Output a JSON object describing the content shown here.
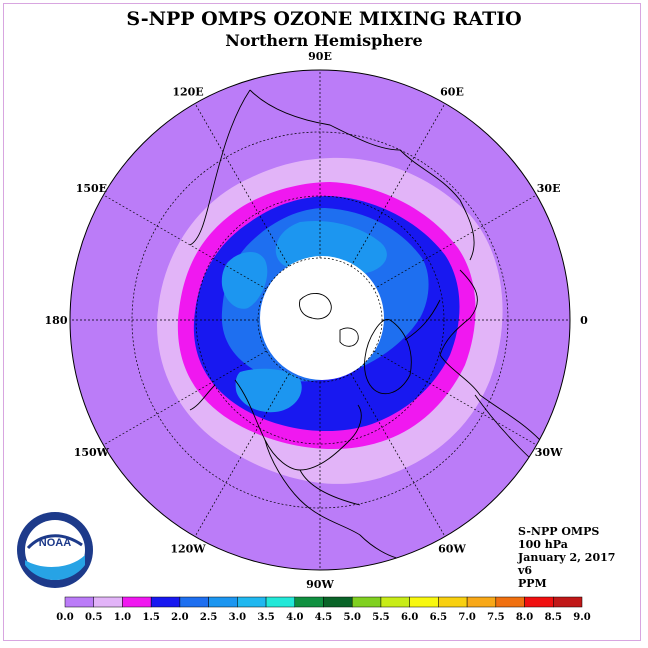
{
  "title": "S-NPP OMPS OZONE MIXING RATIO",
  "subtitle": "Northern Hemisphere",
  "meta": {
    "instrument": "S-NPP OMPS",
    "level": "100 hPa",
    "date": "January 2, 2017",
    "version": "v6",
    "units": "PPM"
  },
  "longitude_labels": [
    "90E",
    "60E",
    "30E",
    "0",
    "30W",
    "60W",
    "90W",
    "120W",
    "150W",
    "180",
    "150E",
    "120E"
  ],
  "colorbar": {
    "ticks": [
      "0.0",
      "0.5",
      "1.0",
      "1.5",
      "2.0",
      "2.5",
      "3.0",
      "3.5",
      "4.0",
      "4.5",
      "5.0",
      "5.5",
      "6.0",
      "6.5",
      "7.0",
      "7.5",
      "8.0",
      "8.5",
      "9.0"
    ],
    "colors": [
      "#bb7cf8",
      "#e2b4f8",
      "#f018f0",
      "#1818f0",
      "#1e6ff0",
      "#1c96f0",
      "#20b8f0",
      "#22e8d8",
      "#109040",
      "#0a6428",
      "#80d020",
      "#c8ec18",
      "#f8f810",
      "#f8d010",
      "#f8a818",
      "#f07010",
      "#f01010",
      "#c01818"
    ]
  },
  "colors": {
    "ocean_background": "#bb7cf8",
    "ring_light": "#e2b4f8",
    "ring_magenta": "#f018f0",
    "ring_blue": "#1818f0",
    "inner_mid_blue": "#1e6ff0",
    "inner_light_blue": "#1c96f0",
    "polar_night": "#ffffff"
  },
  "logo_text": "NOAA"
}
